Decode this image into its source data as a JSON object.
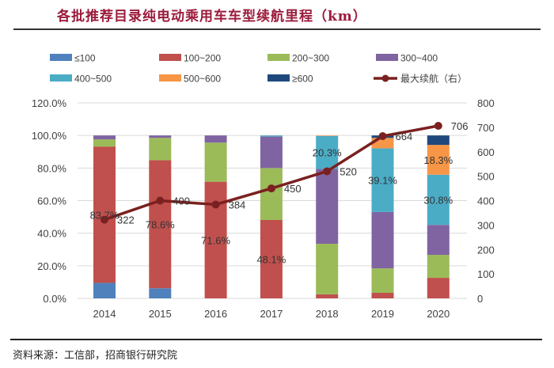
{
  "header": {
    "title": "各批推荐目录纯电动乘用车车型续航里程（km）"
  },
  "footer": {
    "source": "资料来源：工信部，招商银行研究院"
  },
  "chart_data": {
    "type": "bar",
    "subtype": "stacked-percent-bar-with-line",
    "title": "各批推荐目录纯电动乘用车车型续航里程（km）",
    "categories": [
      "2014",
      "2015",
      "2016",
      "2017",
      "2018",
      "2019",
      "2020"
    ],
    "series": [
      {
        "name": "≤100",
        "color": "#4f81bd",
        "values": [
          9.5,
          6.2,
          0,
          0,
          0,
          0,
          0
        ]
      },
      {
        "name": "100~200",
        "color": "#c0504d",
        "values": [
          83.7,
          78.6,
          71.6,
          48.1,
          2.5,
          3.4,
          12.6
        ]
      },
      {
        "name": "200~300",
        "color": "#9bbb59",
        "values": [
          4.4,
          13.7,
          24.0,
          31.9,
          31.0,
          15.0,
          14.1
        ]
      },
      {
        "name": "300~400",
        "color": "#8064a2",
        "values": [
          2.4,
          1.5,
          4.4,
          19.3,
          45.9,
          34.6,
          18.4
        ]
      },
      {
        "name": "400~500",
        "color": "#4bacc6",
        "values": [
          0,
          0,
          0,
          0.7,
          20.3,
          39.1,
          30.8
        ]
      },
      {
        "name": "500~600",
        "color": "#f79646",
        "values": [
          0,
          0,
          0,
          0,
          0.3,
          6.4,
          18.3
        ]
      },
      {
        "name": "≥600",
        "color": "#1f497d",
        "values": [
          0,
          0,
          0,
          0,
          0,
          1.5,
          5.8
        ]
      }
    ],
    "line_series": {
      "name": "最大续航（右）",
      "color": "#7b2020",
      "axis": "right",
      "values": [
        322,
        400,
        384,
        450,
        520,
        664,
        706
      ]
    },
    "data_labels": [
      {
        "series": "100~200",
        "category": "2014",
        "text": "83.7%"
      },
      {
        "series": "100~200",
        "category": "2015",
        "text": "78.6%"
      },
      {
        "series": "100~200",
        "category": "2016",
        "text": "71.6%"
      },
      {
        "series": "100~200",
        "category": "2017",
        "text": "48.1%"
      },
      {
        "series": "400~500",
        "category": "2018",
        "text": "20.3%"
      },
      {
        "series": "400~500",
        "category": "2019",
        "text": "39.1%"
      },
      {
        "series": "400~500",
        "category": "2020",
        "text": "30.8%"
      },
      {
        "series": "500~600",
        "category": "2020",
        "text": "18.3%"
      }
    ],
    "y_left": {
      "ylim": [
        0,
        120
      ],
      "ticks": [
        "0.0%",
        "20.0%",
        "40.0%",
        "60.0%",
        "80.0%",
        "100.0%",
        "120.0%"
      ]
    },
    "y_right": {
      "ylim": [
        0,
        800
      ],
      "ticks": [
        "0",
        "100",
        "200",
        "300",
        "400",
        "500",
        "600",
        "700",
        "800"
      ]
    },
    "xlabel": "",
    "ylabel": "",
    "grid": true,
    "legend": "top",
    "legend_order": [
      "≤100",
      "100~200",
      "200~300",
      "300~400",
      "400~500",
      "500~600",
      "≥600",
      "最大续航（右）"
    ]
  }
}
